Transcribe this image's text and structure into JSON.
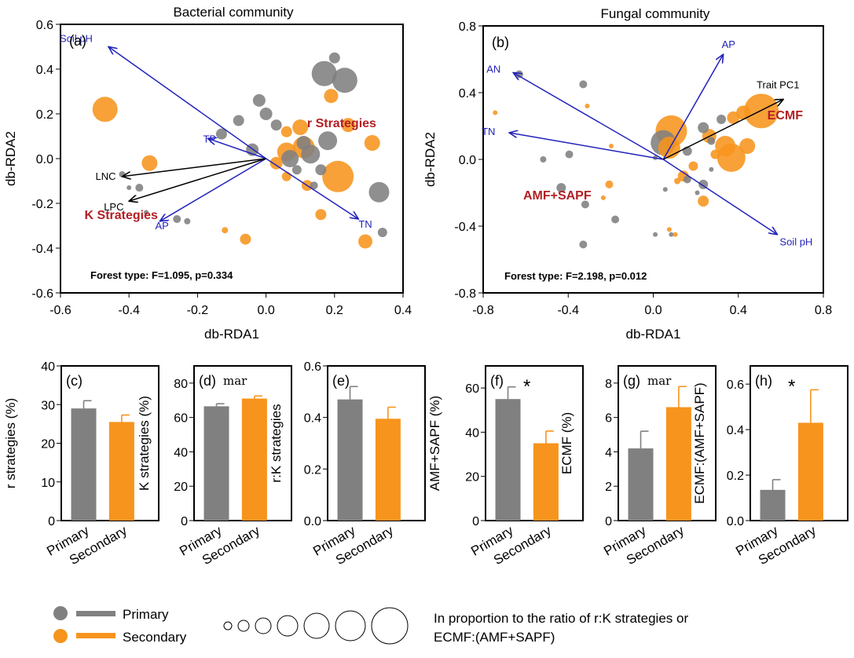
{
  "colors": {
    "primary": "#808080",
    "secondary": "#F7941D",
    "env_arrow": "#2222BB",
    "trait_arrow": "#000000",
    "strategy_text": "#B21F24"
  },
  "chart_data": [
    {
      "type": "scatter",
      "panel": "(a)",
      "title": "Bacterial community",
      "xlabel": "db-RDA1",
      "ylabel": "db-RDA2",
      "xlim": [
        -0.6,
        0.4
      ],
      "ylim": [
        -0.6,
        0.6
      ],
      "xticks": [
        "-0.6",
        "-0.4",
        "-0.2",
        "0.0",
        "0.2",
        "0.4"
      ],
      "yticks": [
        "-0.6",
        "-0.4",
        "-0.2",
        "0.0",
        "0.2",
        "0.4",
        "0.6"
      ],
      "arrows": [
        {
          "label": "Soil pH",
          "x": -0.46,
          "y": 0.5,
          "kind": "env"
        },
        {
          "label": "TP",
          "x": -0.17,
          "y": 0.09,
          "kind": "env"
        },
        {
          "label": "AP",
          "x": -0.31,
          "y": -0.28,
          "kind": "env"
        },
        {
          "label": "TN",
          "x": 0.27,
          "y": -0.27,
          "kind": "env"
        },
        {
          "label": "LNC",
          "x": -0.42,
          "y": -0.08,
          "kind": "trait"
        },
        {
          "label": "LPC",
          "x": -0.4,
          "y": -0.19,
          "kind": "trait"
        }
      ],
      "strategy_labels": [
        {
          "text": "r Strategies",
          "x": 0.12,
          "y": 0.14
        },
        {
          "text": "K Strategies",
          "x": -0.53,
          "y": -0.27
        }
      ],
      "stat_text": "Forest type: F=1.095, p=0.334",
      "series": [
        {
          "group": "Primary",
          "points": [
            {
              "x": 0.2,
              "y": 0.45,
              "r": 7
            },
            {
              "x": 0.17,
              "y": 0.38,
              "r": 16
            },
            {
              "x": 0.23,
              "y": 0.35,
              "r": 16
            },
            {
              "x": -0.02,
              "y": 0.26,
              "r": 8
            },
            {
              "x": 0.0,
              "y": 0.2,
              "r": 8
            },
            {
              "x": 0.03,
              "y": 0.15,
              "r": 7
            },
            {
              "x": -0.08,
              "y": 0.17,
              "r": 7
            },
            {
              "x": -0.13,
              "y": 0.11,
              "r": 7
            },
            {
              "x": -0.04,
              "y": 0.04,
              "r": 8
            },
            {
              "x": 0.11,
              "y": 0.07,
              "r": 9
            },
            {
              "x": 0.18,
              "y": 0.08,
              "r": 12
            },
            {
              "x": 0.13,
              "y": 0.02,
              "r": 12
            },
            {
              "x": 0.07,
              "y": 0.0,
              "r": 11
            },
            {
              "x": 0.16,
              "y": -0.05,
              "r": 7
            },
            {
              "x": 0.09,
              "y": -0.05,
              "r": 6
            },
            {
              "x": 0.14,
              "y": -0.12,
              "r": 5
            },
            {
              "x": 0.33,
              "y": -0.15,
              "r": 13
            },
            {
              "x": -0.37,
              "y": -0.13,
              "r": 5
            },
            {
              "x": -0.42,
              "y": -0.07,
              "r": 4
            },
            {
              "x": -0.23,
              "y": -0.28,
              "r": 4
            },
            {
              "x": -0.26,
              "y": -0.27,
              "r": 5
            },
            {
              "x": 0.34,
              "y": -0.33,
              "r": 6
            },
            {
              "x": -0.35,
              "y": -0.24,
              "r": 3
            },
            {
              "x": -0.4,
              "y": -0.13,
              "r": 3
            }
          ]
        },
        {
          "group": "Secondary",
          "points": [
            {
              "x": -0.47,
              "y": 0.22,
              "r": 16
            },
            {
              "x": 0.24,
              "y": 0.15,
              "r": 9
            },
            {
              "x": 0.1,
              "y": 0.14,
              "r": 10
            },
            {
              "x": 0.06,
              "y": 0.12,
              "r": 7
            },
            {
              "x": 0.11,
              "y": 0.05,
              "r": 14
            },
            {
              "x": 0.06,
              "y": 0.03,
              "r": 12
            },
            {
              "x": 0.19,
              "y": 0.28,
              "r": 9
            },
            {
              "x": 0.21,
              "y": -0.08,
              "r": 20
            },
            {
              "x": -0.34,
              "y": -0.02,
              "r": 10
            },
            {
              "x": 0.31,
              "y": 0.07,
              "r": 10
            },
            {
              "x": 0.03,
              "y": -0.02,
              "r": 8
            },
            {
              "x": 0.06,
              "y": -0.08,
              "r": 6
            },
            {
              "x": 0.12,
              "y": -0.12,
              "r": 7
            },
            {
              "x": 0.16,
              "y": -0.25,
              "r": 7
            },
            {
              "x": -0.06,
              "y": -0.36,
              "r": 7
            },
            {
              "x": 0.29,
              "y": -0.37,
              "r": 9
            },
            {
              "x": -0.12,
              "y": -0.32,
              "r": 4
            }
          ]
        }
      ]
    },
    {
      "type": "scatter",
      "panel": "(b)",
      "title": "Fungal community",
      "xlabel": "db-RDA1",
      "ylabel": "db-RDA2",
      "xlim": [
        -0.9,
        0.8
      ],
      "ylim": [
        -0.8,
        0.8
      ],
      "xticks": [
        "-0.8",
        "-0.4",
        "0.0",
        "0.4",
        "0.8"
      ],
      "yticks": [
        "-0.8",
        "-0.4",
        "0.0",
        "0.4",
        "0.8"
      ],
      "arrows": [
        {
          "label": "AP",
          "x": 0.3,
          "y": 0.63,
          "kind": "env"
        },
        {
          "label": "AN",
          "x": -0.75,
          "y": 0.52,
          "kind": "env"
        },
        {
          "label": "TN",
          "x": -0.77,
          "y": 0.16,
          "kind": "env"
        },
        {
          "label": "Soil pH",
          "x": 0.57,
          "y": -0.45,
          "kind": "env"
        },
        {
          "label": "Trait PC1",
          "x": 0.6,
          "y": 0.36,
          "kind": "trait"
        }
      ],
      "strategy_labels": [
        {
          "text": "ECMF",
          "x": 0.52,
          "y": 0.24
        },
        {
          "text": "AMF+SAPF",
          "x": -0.7,
          "y": -0.24
        }
      ],
      "stat_text": "Forest type: F=2.198, p=0.012",
      "series": [
        {
          "group": "Primary",
          "points": [
            {
              "x": -0.72,
              "y": 0.51,
              "r": 5
            },
            {
              "x": -0.4,
              "y": 0.45,
              "r": 5
            },
            {
              "x": -0.6,
              "y": 0.0,
              "r": 4
            },
            {
              "x": -0.47,
              "y": 0.03,
              "r": 5
            },
            {
              "x": -0.51,
              "y": -0.17,
              "r": 6
            },
            {
              "x": -0.39,
              "y": -0.27,
              "r": 5
            },
            {
              "x": -0.4,
              "y": -0.51,
              "r": 5
            },
            {
              "x": -0.24,
              "y": -0.36,
              "r": 5
            },
            {
              "x": 0.0,
              "y": 0.1,
              "r": 16
            },
            {
              "x": 0.2,
              "y": 0.19,
              "r": 7
            },
            {
              "x": 0.29,
              "y": 0.24,
              "r": 6
            },
            {
              "x": 0.24,
              "y": 0.11,
              "r": 5
            },
            {
              "x": 0.12,
              "y": 0.05,
              "r": 6
            },
            {
              "x": 0.2,
              "y": -0.15,
              "r": 6
            },
            {
              "x": 0.12,
              "y": -0.12,
              "r": 5
            },
            {
              "x": 0.01,
              "y": -0.18,
              "r": 3
            },
            {
              "x": -0.04,
              "y": 0.01,
              "r": 3
            },
            {
              "x": 0.17,
              "y": -0.2,
              "r": 3
            },
            {
              "x": -0.04,
              "y": -0.45,
              "r": 3
            },
            {
              "x": 0.04,
              "y": -0.45,
              "r": 3
            },
            {
              "x": 0.24,
              "y": -0.06,
              "r": 3
            }
          ]
        },
        {
          "group": "Secondary",
          "points": [
            {
              "x": 0.49,
              "y": 0.29,
              "r": 22
            },
            {
              "x": 0.34,
              "y": 0.01,
              "r": 18
            },
            {
              "x": 0.31,
              "y": 0.08,
              "r": 13
            },
            {
              "x": 0.04,
              "y": 0.17,
              "r": 20
            },
            {
              "x": 0.03,
              "y": 0.07,
              "r": 14
            },
            {
              "x": 0.23,
              "y": 0.14,
              "r": 9
            },
            {
              "x": 0.35,
              "y": 0.25,
              "r": 8
            },
            {
              "x": 0.4,
              "y": 0.28,
              "r": 9
            },
            {
              "x": 0.42,
              "y": 0.08,
              "r": 10
            },
            {
              "x": 0.1,
              "y": -0.1,
              "r": 7
            },
            {
              "x": 0.2,
              "y": -0.25,
              "r": 7
            },
            {
              "x": 0.15,
              "y": -0.04,
              "r": 6
            },
            {
              "x": 0.26,
              "y": 0.03,
              "r": 6
            },
            {
              "x": -0.27,
              "y": -0.15,
              "r": 5
            },
            {
              "x": 0.07,
              "y": -0.13,
              "r": 4
            },
            {
              "x": -0.38,
              "y": 0.32,
              "r": 3
            },
            {
              "x": -0.84,
              "y": 0.28,
              "r": 3
            },
            {
              "x": -0.3,
              "y": -0.23,
              "r": 3
            },
            {
              "x": -0.26,
              "y": 0.08,
              "r": 3
            },
            {
              "x": 0.03,
              "y": -0.42,
              "r": 3
            },
            {
              "x": 0.06,
              "y": -0.45,
              "r": 3
            }
          ]
        }
      ]
    },
    {
      "type": "bar",
      "panel": "(c)",
      "ylabel": "r strategies (%)",
      "ylim": [
        0,
        40
      ],
      "yticks": [
        "0",
        "10",
        "20",
        "30",
        "40"
      ],
      "categories": [
        "Primary",
        "Secondary"
      ],
      "values": [
        29.0,
        25.5
      ],
      "errors": [
        2.0,
        1.8
      ],
      "annotation": ""
    },
    {
      "type": "bar",
      "panel": "(d)",
      "ylabel": "K strategies (%)",
      "ylim": [
        0,
        90
      ],
      "yticks": [
        "0",
        "20",
        "40",
        "60",
        "80"
      ],
      "categories": [
        "Primary",
        "Secondary"
      ],
      "values": [
        66.5,
        71.0
      ],
      "errors": [
        1.5,
        1.5
      ],
      "annotation": "mar"
    },
    {
      "type": "bar",
      "panel": "(e)",
      "ylabel": "r:K strategies",
      "ylim": [
        0,
        0.6
      ],
      "yticks": [
        "0.0",
        "0.2",
        "0.4",
        "0.6"
      ],
      "categories": [
        "Primary",
        "Secondary"
      ],
      "values": [
        0.47,
        0.395
      ],
      "errors": [
        0.05,
        0.045
      ],
      "annotation": ""
    },
    {
      "type": "bar",
      "panel": "(f)",
      "ylabel": "AMF+SAPF (%)",
      "ylim": [
        0,
        70
      ],
      "yticks": [
        "0",
        "20",
        "40",
        "60"
      ],
      "categories": [
        "Primary",
        "Secondary"
      ],
      "values": [
        55.0,
        35.0
      ],
      "errors": [
        5.5,
        5.5
      ],
      "annotation": "*"
    },
    {
      "type": "bar",
      "panel": "(g)",
      "ylabel": "ECMF (%)",
      "ylim": [
        0,
        9
      ],
      "yticks": [
        "0",
        "2",
        "4",
        "6",
        "8"
      ],
      "categories": [
        "Primary",
        "Secondary"
      ],
      "values": [
        4.2,
        6.6
      ],
      "errors": [
        1.0,
        1.2
      ],
      "annotation": "mar"
    },
    {
      "type": "bar",
      "panel": "(h)",
      "ylabel": "ECMF:(AMF+SAPF)",
      "ylim": [
        0,
        0.68
      ],
      "yticks": [
        "0.0",
        "0.2",
        "0.4",
        "0.6"
      ],
      "categories": [
        "Primary",
        "Secondary"
      ],
      "values": [
        0.135,
        0.43
      ],
      "errors": [
        0.045,
        0.145
      ],
      "annotation": "*"
    }
  ],
  "legend": {
    "primary_label": "Primary",
    "secondary_label": "Secondary",
    "size_note_line1": "In proportion to the ratio of r:K strategies or",
    "size_note_line2": "ECMF:(AMF+SAPF)",
    "size_circles": [
      5,
      7,
      10,
      13,
      16,
      19,
      23
    ]
  }
}
